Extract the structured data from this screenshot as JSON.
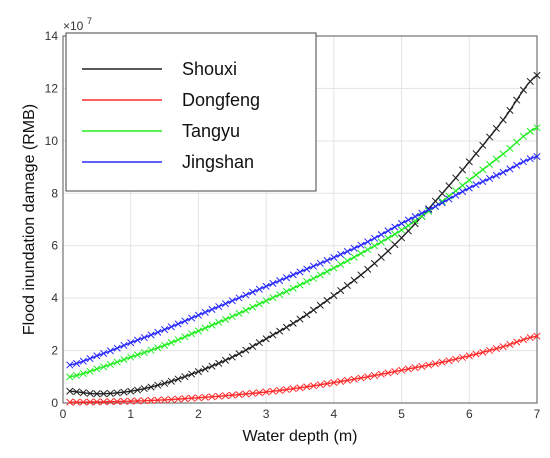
{
  "chart_data": {
    "type": "line",
    "title": "",
    "xlabel": "Water depth (m)",
    "ylabel": "Flood inundation damage (RMB)",
    "y_exponent_label": "×10",
    "y_exponent_power": "7",
    "xlim": [
      0,
      7
    ],
    "ylim": [
      0,
      14
    ],
    "xticks": [
      "0",
      "1",
      "2",
      "3",
      "4",
      "5",
      "6",
      "7"
    ],
    "yticks": [
      "0",
      "2",
      "4",
      "6",
      "8",
      "10",
      "12",
      "14"
    ],
    "grid": true,
    "legend_position": "top-left",
    "marker": "x",
    "x_points": [
      0.1,
      7.0
    ],
    "series": [
      {
        "name": "Shouxi",
        "color": "#222222",
        "x": [
          0.1,
          0.5,
          1.0,
          1.5,
          2.0,
          2.5,
          3.0,
          3.5,
          4.0,
          4.5,
          5.0,
          5.5,
          6.0,
          6.5,
          7.0
        ],
        "values": [
          0.45,
          0.35,
          0.45,
          0.75,
          1.2,
          1.75,
          2.45,
          3.2,
          4.1,
          5.1,
          6.3,
          7.7,
          9.2,
          10.8,
          12.5
        ]
      },
      {
        "name": "Dongfeng",
        "color": "#ff2a2a",
        "x": [
          0.1,
          0.5,
          1.0,
          1.5,
          2.0,
          2.5,
          3.0,
          3.5,
          4.0,
          4.5,
          5.0,
          5.5,
          6.0,
          6.5,
          7.0
        ],
        "values": [
          0.03,
          0.04,
          0.07,
          0.12,
          0.2,
          0.3,
          0.42,
          0.58,
          0.78,
          1.0,
          1.25,
          1.5,
          1.8,
          2.15,
          2.55
        ]
      },
      {
        "name": "Tangyu",
        "color": "#22ee22",
        "x": [
          0.1,
          0.5,
          1.0,
          1.5,
          2.0,
          2.5,
          3.0,
          3.5,
          4.0,
          4.5,
          5.0,
          5.5,
          6.0,
          6.5,
          7.0
        ],
        "values": [
          1.0,
          1.3,
          1.75,
          2.2,
          2.75,
          3.3,
          3.9,
          4.5,
          5.15,
          5.85,
          6.6,
          7.5,
          8.5,
          9.5,
          10.5
        ]
      },
      {
        "name": "Jingshan",
        "color": "#2a2aff",
        "x": [
          0.1,
          0.5,
          1.0,
          1.5,
          2.0,
          2.5,
          3.0,
          3.5,
          4.0,
          4.5,
          5.0,
          5.5,
          6.0,
          6.5,
          7.0
        ],
        "values": [
          1.45,
          1.8,
          2.3,
          2.8,
          3.35,
          3.9,
          4.45,
          5.0,
          5.55,
          6.15,
          6.85,
          7.5,
          8.2,
          8.8,
          9.4
        ]
      }
    ]
  }
}
